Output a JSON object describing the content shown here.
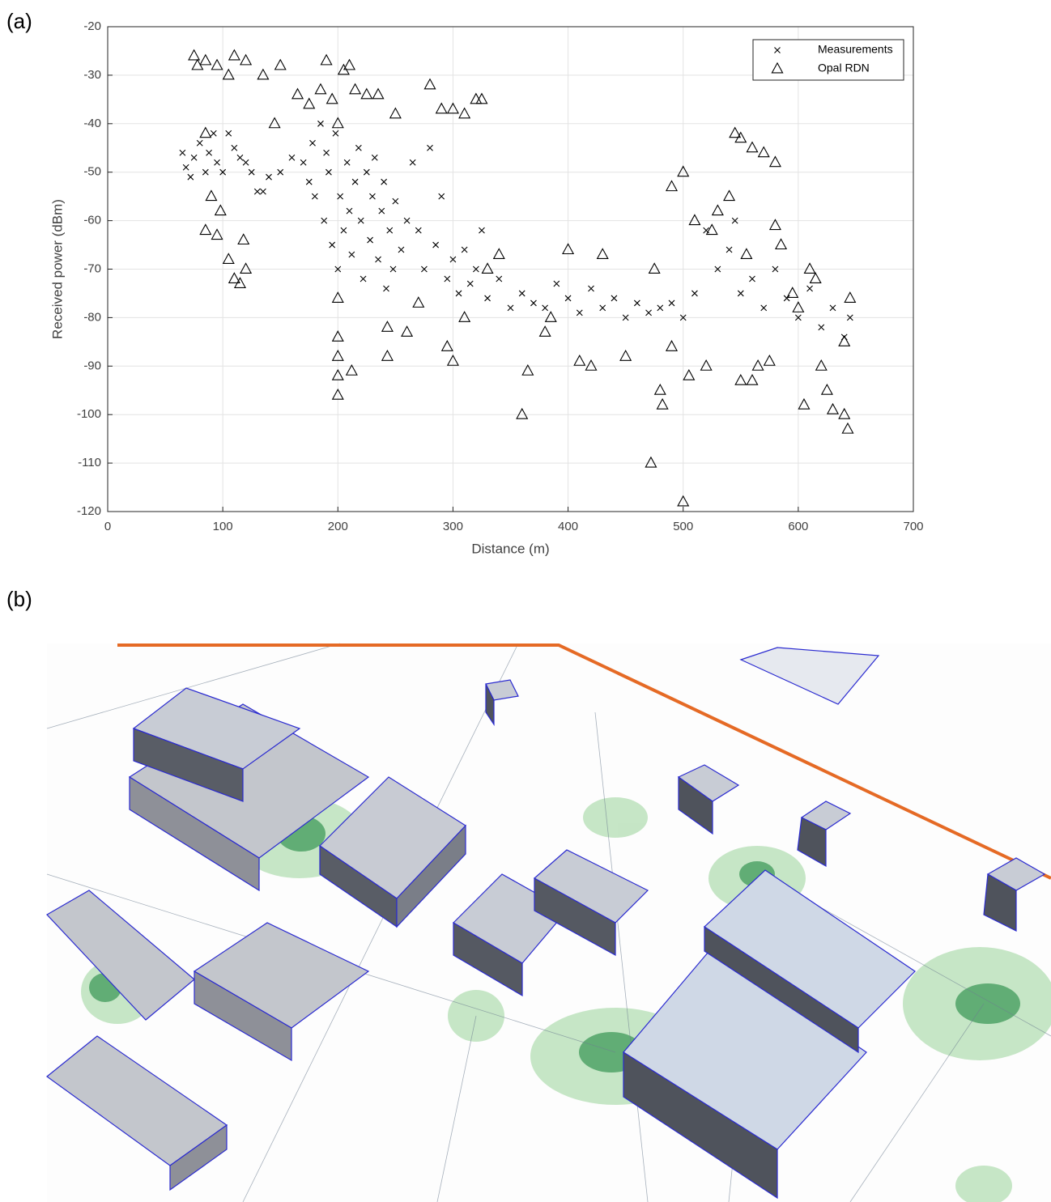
{
  "panel_labels": [
    "(a)",
    "(b)"
  ],
  "chart_data": {
    "type": "scatter",
    "xlabel": "Distance (m)",
    "ylabel": "Received power (dBm)",
    "xlim": [
      0,
      700
    ],
    "ylim": [
      -120,
      -20
    ],
    "xticks": [
      0,
      100,
      200,
      300,
      400,
      500,
      600,
      700
    ],
    "yticks": [
      -120,
      -110,
      -100,
      -90,
      -80,
      -70,
      -60,
      -50,
      -40,
      -30,
      -20
    ],
    "grid": true,
    "legend": "upper-right",
    "series": [
      {
        "name": "Measurements",
        "marker": "x",
        "color": "#000000",
        "x": [
          65,
          68,
          72,
          75,
          80,
          85,
          88,
          92,
          95,
          100,
          105,
          110,
          115,
          120,
          125,
          130,
          135,
          140,
          150,
          160,
          170,
          175,
          178,
          180,
          185,
          188,
          190,
          192,
          195,
          198,
          200,
          202,
          205,
          208,
          210,
          212,
          215,
          218,
          220,
          222,
          225,
          228,
          230,
          232,
          235,
          238,
          240,
          242,
          245,
          248,
          250,
          255,
          260,
          265,
          270,
          275,
          280,
          285,
          290,
          295,
          300,
          305,
          310,
          315,
          320,
          325,
          330,
          340,
          350,
          360,
          370,
          380,
          390,
          400,
          410,
          420,
          430,
          440,
          450,
          460,
          470,
          480,
          490,
          500,
          510,
          520,
          530,
          540,
          545,
          550,
          560,
          570,
          580,
          590,
          600,
          610,
          620,
          630,
          640,
          645
        ],
        "values": [
          -46,
          -49,
          -51,
          -47,
          -44,
          -50,
          -46,
          -42,
          -48,
          -50,
          -42,
          -45,
          -47,
          -48,
          -50,
          -54,
          -54,
          -51,
          -50,
          -47,
          -48,
          -52,
          -44,
          -55,
          -40,
          -60,
          -46,
          -50,
          -65,
          -42,
          -70,
          -55,
          -62,
          -48,
          -58,
          -67,
          -52,
          -45,
          -60,
          -72,
          -50,
          -64,
          -55,
          -47,
          -68,
          -58,
          -52,
          -74,
          -62,
          -70,
          -56,
          -66,
          -60,
          -48,
          -62,
          -70,
          -45,
          -65,
          -55,
          -72,
          -68,
          -75,
          -66,
          -73,
          -70,
          -62,
          -76,
          -72,
          -78,
          -75,
          -77,
          -78,
          -73,
          -76,
          -79,
          -74,
          -78,
          -76,
          -80,
          -77,
          -79,
          -78,
          -77,
          -80,
          -75,
          -62,
          -70,
          -66,
          -60,
          -75,
          -72,
          -78,
          -70,
          -76,
          -80,
          -74,
          -82,
          -78,
          -84,
          -80
        ]
      },
      {
        "name": "Opal RDN",
        "marker": "triangle",
        "color": "#000000",
        "x": [
          75,
          78,
          85,
          95,
          105,
          110,
          120,
          135,
          150,
          165,
          175,
          185,
          190,
          195,
          200,
          205,
          210,
          215,
          225,
          235,
          250,
          280,
          290,
          300,
          310,
          320,
          325,
          85,
          90,
          98,
          95,
          85,
          105,
          110,
          115,
          120,
          118,
          145,
          200,
          200,
          200,
          200,
          200,
          212,
          243,
          243,
          260,
          270,
          295,
          300,
          310,
          330,
          340,
          360,
          365,
          380,
          385,
          400,
          410,
          420,
          430,
          450,
          475,
          472,
          480,
          482,
          490,
          500,
          505,
          500,
          490,
          510,
          520,
          525,
          530,
          540,
          545,
          550,
          560,
          570,
          580,
          550,
          560,
          565,
          580,
          600,
          605,
          610,
          620,
          625,
          630,
          640,
          643,
          645,
          640,
          615,
          595,
          585,
          575,
          555
        ],
        "values": [
          -26,
          -28,
          -27,
          -28,
          -30,
          -26,
          -27,
          -30,
          -28,
          -34,
          -36,
          -33,
          -27,
          -35,
          -40,
          -29,
          -28,
          -33,
          -34,
          -34,
          -38,
          -32,
          -37,
          -37,
          -38,
          -35,
          -35,
          -42,
          -55,
          -58,
          -63,
          -62,
          -68,
          -72,
          -73,
          -70,
          -64,
          -40,
          -76,
          -84,
          -88,
          -92,
          -96,
          -91,
          -82,
          -88,
          -83,
          -77,
          -86,
          -89,
          -80,
          -70,
          -67,
          -100,
          -91,
          -83,
          -80,
          -66,
          -89,
          -90,
          -67,
          -88,
          -70,
          -110,
          -95,
          -98,
          -86,
          -118,
          -92,
          -50,
          -53,
          -60,
          -90,
          -62,
          -58,
          -55,
          -42,
          -43,
          -45,
          -46,
          -48,
          -93,
          -93,
          -90,
          -61,
          -78,
          -98,
          -70,
          -90,
          -95,
          -99,
          -100,
          -103,
          -76,
          -85,
          -72,
          -75,
          -65,
          -89,
          -67
        ]
      }
    ]
  }
}
